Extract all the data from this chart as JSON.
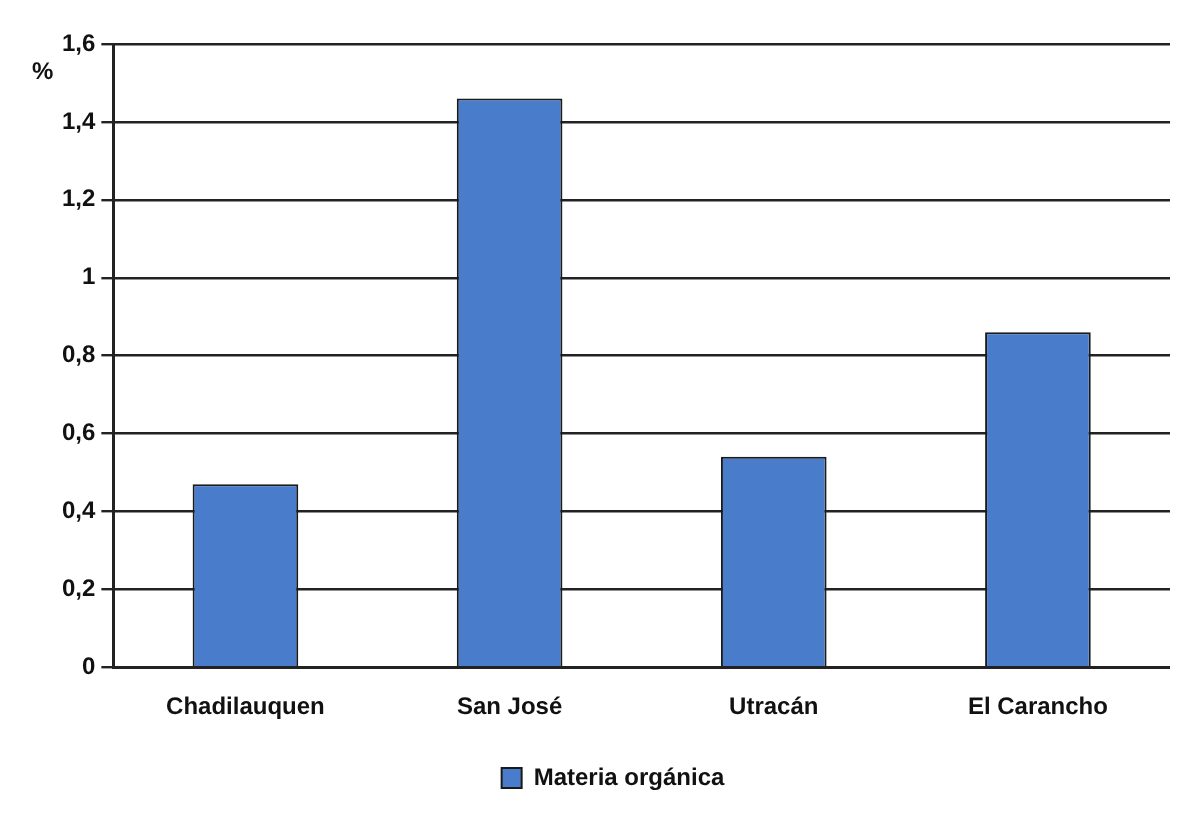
{
  "chart_data": {
    "type": "bar",
    "ylabel": "%",
    "categories": [
      "Chadilauquen",
      "San José",
      "Utracán",
      "El Carancho"
    ],
    "series": [
      {
        "name": "Materia orgánica",
        "color": "#4a7ccc",
        "values": [
          0.47,
          1.46,
          0.54,
          0.86
        ]
      }
    ],
    "ylim": [
      0,
      1.6
    ],
    "yticks": [
      {
        "value": 0,
        "label": "0"
      },
      {
        "value": 0.2,
        "label": "0,2"
      },
      {
        "value": 0.4,
        "label": "0,4"
      },
      {
        "value": 0.6,
        "label": "0,6"
      },
      {
        "value": 0.8,
        "label": "0,8"
      },
      {
        "value": 1,
        "label": "1"
      },
      {
        "value": 1.2,
        "label": "1,2"
      },
      {
        "value": 1.4,
        "label": "1,4"
      },
      {
        "value": 1.6,
        "label": "1,6"
      }
    ],
    "grid": "y",
    "legend": "bottom"
  }
}
